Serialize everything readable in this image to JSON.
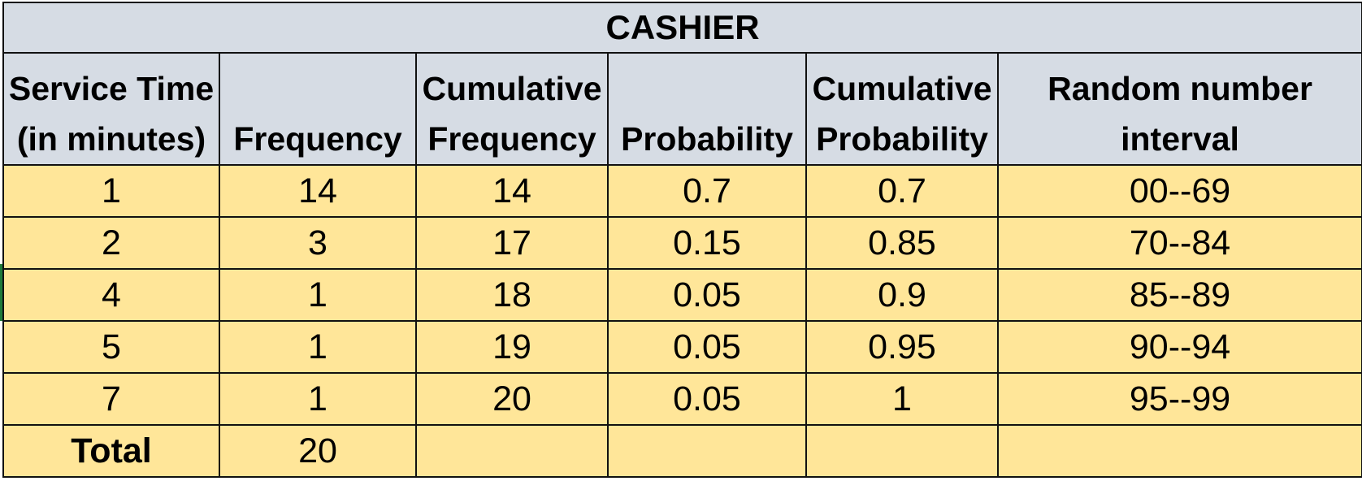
{
  "title": "CASHIER",
  "headers": [
    {
      "line1": "Service Time",
      "line2": "(in minutes)"
    },
    {
      "line1": "",
      "line2": "Frequency"
    },
    {
      "line1": "Cumulative",
      "line2": "Frequency"
    },
    {
      "line1": "",
      "line2": "Probability"
    },
    {
      "line1": "Cumulative",
      "line2": "Probability"
    },
    {
      "line1": "Random number",
      "line2": "interval"
    }
  ],
  "rows": [
    [
      "1",
      "14",
      "14",
      "0.7",
      "0.7",
      "00--69"
    ],
    [
      "2",
      "3",
      "17",
      "0.15",
      "0.85",
      "70--84"
    ],
    [
      "4",
      "1",
      "18",
      "0.05",
      "0.9",
      "85--89"
    ],
    [
      "5",
      "1",
      "19",
      "0.05",
      "0.95",
      "90--94"
    ],
    [
      "7",
      "1",
      "20",
      "0.05",
      "1",
      "95--99"
    ]
  ],
  "total": {
    "label": "Total",
    "frequency": "20"
  },
  "colors": {
    "header_fill": "#d6dce4",
    "data_fill": "#ffe699",
    "border": "#111111"
  }
}
